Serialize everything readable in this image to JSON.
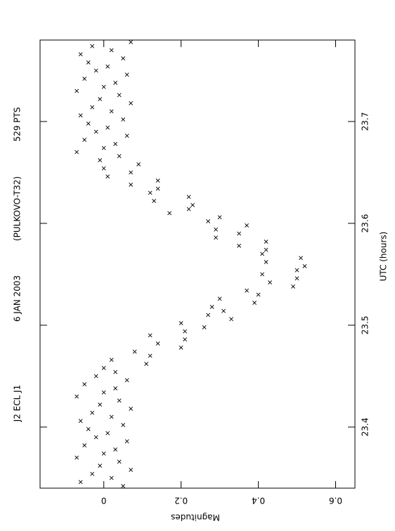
{
  "chart_data": {
    "type": "scatter",
    "title_parts": [
      "J2 ECL J1",
      "6 JAN 2003",
      "(PULKOVO-T32)",
      "529 PTS"
    ],
    "x_label": "UTC (hours)",
    "y_label": "Magnitudes",
    "xlim": [
      23.34,
      23.78
    ],
    "ylim": [
      -0.165,
      0.65
    ],
    "xticks": [
      23.4,
      23.5,
      23.6,
      23.7
    ],
    "yticks": [
      0,
      0.2,
      0.4,
      0.6
    ],
    "color": "#000000",
    "marker": "x",
    "x": [
      23.342,
      23.346,
      23.35,
      23.354,
      23.358,
      23.362,
      23.366,
      23.37,
      23.374,
      23.378,
      23.382,
      23.386,
      23.39,
      23.394,
      23.398,
      23.402,
      23.406,
      23.41,
      23.414,
      23.418,
      23.422,
      23.426,
      23.43,
      23.434,
      23.438,
      23.442,
      23.446,
      23.45,
      23.454,
      23.458,
      23.462,
      23.466,
      23.47,
      23.474,
      23.478,
      23.482,
      23.486,
      23.49,
      23.494,
      23.498,
      23.502,
      23.506,
      23.51,
      23.514,
      23.518,
      23.522,
      23.526,
      23.53,
      23.534,
      23.538,
      23.542,
      23.546,
      23.55,
      23.554,
      23.558,
      23.562,
      23.566,
      23.57,
      23.574,
      23.578,
      23.582,
      23.586,
      23.59,
      23.594,
      23.598,
      23.602,
      23.606,
      23.61,
      23.614,
      23.618,
      23.622,
      23.626,
      23.63,
      23.634,
      23.638,
      23.642,
      23.646,
      23.65,
      23.654,
      23.658,
      23.662,
      23.666,
      23.67,
      23.674,
      23.678,
      23.682,
      23.686,
      23.69,
      23.694,
      23.698,
      23.702,
      23.706,
      23.71,
      23.714,
      23.718,
      23.722,
      23.726,
      23.73,
      23.734,
      23.738,
      23.742,
      23.746,
      23.75,
      23.754,
      23.758,
      23.762,
      23.766,
      23.77,
      23.774,
      23.778
    ],
    "values": [
      0.05,
      -0.06,
      0.02,
      -0.03,
      0.07,
      -0.01,
      0.04,
      -0.07,
      0,
      0.03,
      -0.05,
      0.06,
      -0.02,
      0.01,
      -0.04,
      0.05,
      -0.06,
      0.02,
      -0.03,
      0.07,
      -0.01,
      0.04,
      -0.07,
      0,
      0.03,
      -0.05,
      0.06,
      -0.02,
      0.03,
      0,
      0.11,
      0.02,
      0.12,
      0.08,
      0.2,
      0.14,
      0.21,
      0.12,
      0.21,
      0.26,
      0.2,
      0.33,
      0.27,
      0.31,
      0.28,
      0.39,
      0.3,
      0.4,
      0.37,
      0.49,
      0.43,
      0.5,
      0.41,
      0.5,
      0.52,
      0.42,
      0.51,
      0.41,
      0.42,
      0.35,
      0.42,
      0.29,
      0.35,
      0.29,
      0.37,
      0.27,
      0.3,
      0.17,
      0.22,
      0.23,
      0.13,
      0.22,
      0.12,
      0.14,
      0.07,
      0.14,
      0.01,
      0.07,
      0,
      0.09,
      -0.01,
      0.04,
      -0.07,
      0,
      0.03,
      -0.05,
      0.06,
      -0.02,
      0.01,
      -0.04,
      0.05,
      -0.06,
      0.02,
      -0.03,
      0.07,
      -0.01,
      0.04,
      -0.07,
      0,
      0.03,
      -0.05,
      0.06,
      -0.02,
      0.01,
      -0.04,
      0.05,
      -0.06,
      0.02,
      -0.03,
      0.07
    ]
  }
}
